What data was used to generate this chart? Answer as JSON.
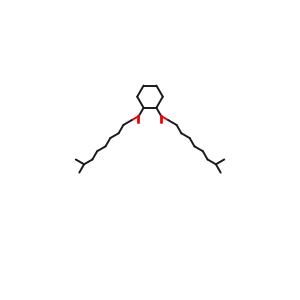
{
  "bond_color": "#1a1a1a",
  "oxygen_color": "#ee0000",
  "bg_color": "#ffffff",
  "lw": 1.4
}
